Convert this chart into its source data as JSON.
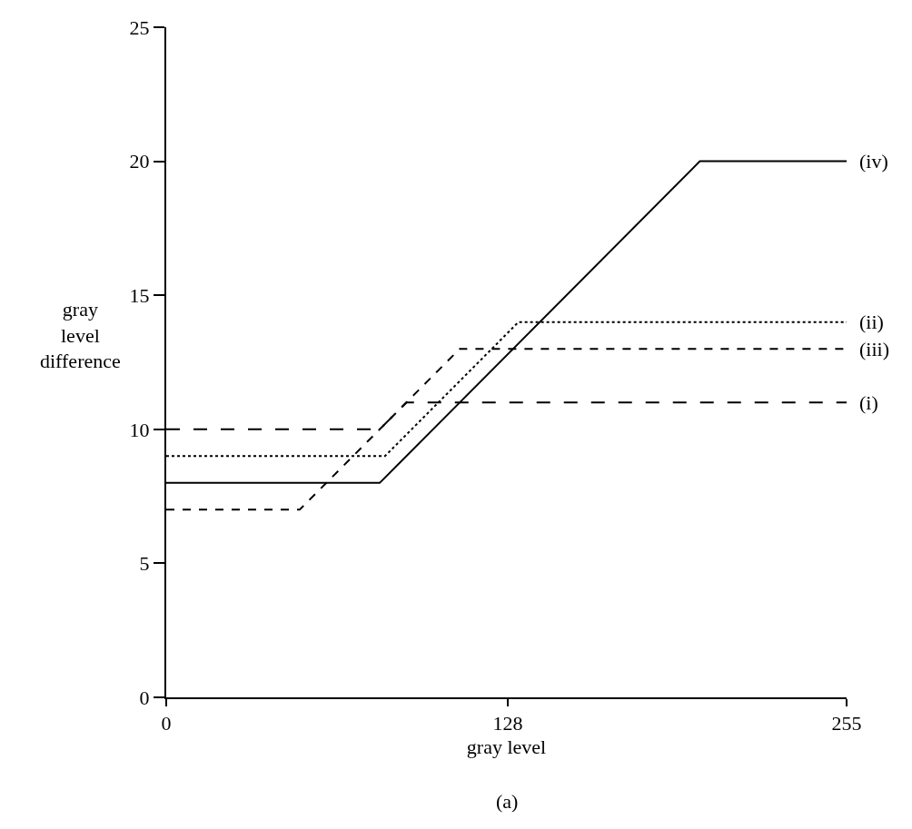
{
  "chart_data": {
    "type": "line",
    "xlabel": "gray level",
    "ylabel": "gray level difference",
    "xlim": [
      0,
      255
    ],
    "ylim": [
      0,
      25
    ],
    "xticks": [
      0,
      128,
      255
    ],
    "yticks": [
      0,
      5,
      10,
      15,
      20,
      25
    ],
    "legend": false,
    "marker": "none",
    "annotations": [
      "(a)"
    ],
    "series": [
      {
        "name": "(i)",
        "color": "#000000",
        "line_style": "longdash",
        "x": [
          0,
          80,
          90,
          255
        ],
        "values": [
          10,
          10,
          11,
          11
        ]
      },
      {
        "name": "(ii)",
        "color": "#000000",
        "line_style": "dotted",
        "x": [
          0,
          82,
          132,
          255
        ],
        "values": [
          9,
          9,
          14,
          14
        ]
      },
      {
        "name": "(iii)",
        "color": "#000000",
        "line_style": "dashed",
        "x": [
          0,
          50,
          110,
          255
        ],
        "values": [
          7,
          7,
          13,
          13
        ]
      },
      {
        "name": "(iv)",
        "color": "#000000",
        "line_style": "solid",
        "x": [
          0,
          80,
          200,
          255
        ],
        "values": [
          8,
          8,
          20,
          20
        ]
      }
    ]
  }
}
